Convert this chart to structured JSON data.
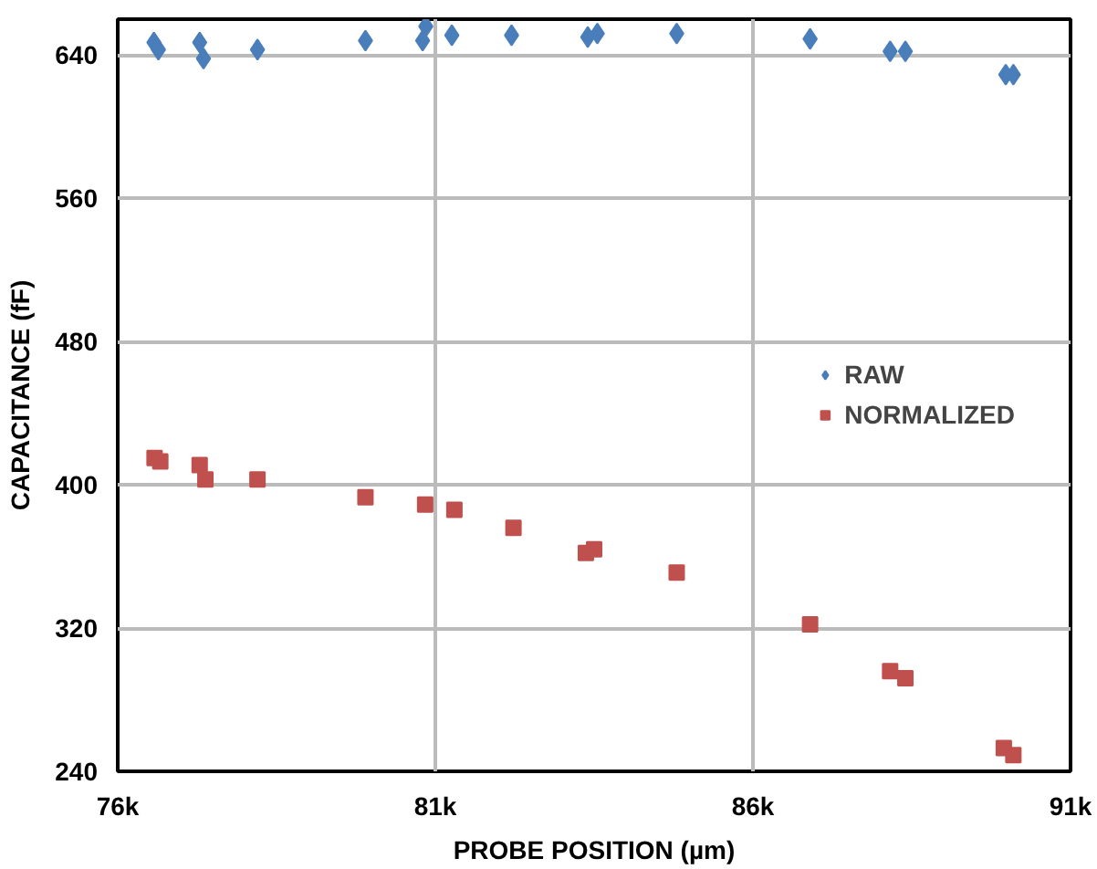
{
  "chart_data": {
    "type": "scatter",
    "xlabel": "PROBE POSITION (µm)",
    "ylabel": "CAPACITANCE (fF)",
    "xlim": [
      76000,
      91000
    ],
    "ylim": [
      240,
      660
    ],
    "xticks": [
      {
        "value": 76000,
        "label": "76k"
      },
      {
        "value": 81000,
        "label": "81k"
      },
      {
        "value": 86000,
        "label": "86k"
      },
      {
        "value": 91000,
        "label": "91k"
      }
    ],
    "yticks": [
      240,
      320,
      400,
      480,
      560,
      640
    ],
    "grid": true,
    "legend": "right",
    "series": [
      {
        "name": "RAW",
        "color": "#4a7ebb",
        "marker": "diamond",
        "x": [
          76570,
          76640,
          77290,
          77350,
          78200,
          79900,
          80800,
          80850,
          81260,
          82200,
          83400,
          83550,
          84800,
          86900,
          88160,
          88400,
          89980,
          90100
        ],
        "values": [
          647,
          643,
          647,
          638,
          643,
          648,
          648,
          656,
          651,
          651,
          650,
          652,
          652,
          649,
          642,
          642,
          629,
          629
        ]
      },
      {
        "name": "NORMALIZED",
        "color": "#c0504d",
        "marker": "square",
        "x": [
          76580,
          76670,
          77290,
          77380,
          78200,
          79900,
          80840,
          81300,
          82230,
          83370,
          83500,
          84800,
          86900,
          88160,
          88400,
          89950,
          90100
        ],
        "values": [
          415,
          413,
          411,
          403,
          403,
          393,
          389,
          386,
          376,
          362,
          364,
          351,
          322,
          296,
          292,
          253,
          249
        ]
      }
    ]
  }
}
